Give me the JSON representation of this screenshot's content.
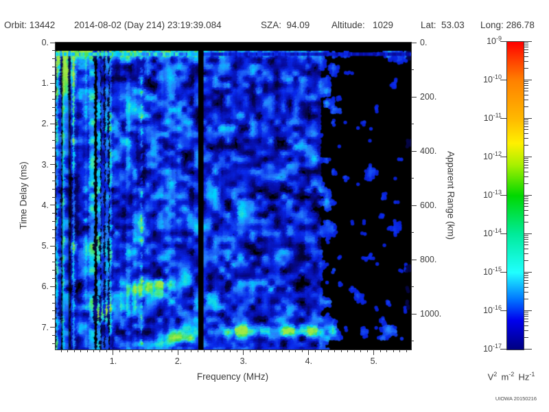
{
  "header": {
    "items": [
      {
        "label": "Orbit:",
        "value": "13442",
        "text": "Orbit: 13442"
      },
      {
        "label": "",
        "value": "2014-08-02 (Day 214) 23:19:39.084",
        "text": "2014-08-02 (Day 214) 23:19:39.084"
      },
      {
        "label": "SZA:",
        "value": "94.09",
        "text": "SZA:  94.09"
      },
      {
        "label": "Altitude:",
        "value": "1029",
        "text": "Altitude:   1029"
      },
      {
        "label": "Lat:",
        "value": "53.03",
        "text": "Lat:  53.03"
      },
      {
        "label": "Long:",
        "value": "286.78",
        "text": "Long: 286.78"
      }
    ]
  },
  "footer": {
    "credit": "UIOWA 20150216"
  },
  "chart_data": {
    "type": "heatmap",
    "subtype": "radar-ionogram-spectrogram",
    "x_axis": {
      "label": "Frequency (MHz)",
      "range": [
        0.105,
        5.56
      ],
      "major_ticks": [
        1,
        2,
        3,
        4,
        5
      ],
      "tick_labels": [
        "1.",
        "2.",
        "3.",
        "4.",
        "5."
      ],
      "minor_step": 0.1
    },
    "y_axis": {
      "label": "Time Delay (ms)",
      "range": [
        0,
        7.53
      ],
      "inverted": true,
      "major_ticks": [
        0,
        1,
        2,
        3,
        4,
        5,
        6,
        7
      ],
      "tick_labels": [
        "0.",
        "1.",
        "2.",
        "3.",
        "4.",
        "5.",
        "6.",
        "7."
      ],
      "minor_step": 0.2
    },
    "y2_axis": {
      "label": "Apparent Range (km)",
      "km_per_ms": 149.9,
      "major_ticks": [
        0,
        200,
        400,
        600,
        800,
        1000
      ],
      "tick_labels": [
        "0.",
        "200.",
        "400.",
        "600.",
        "800.",
        "1000."
      ],
      "minor_step": 100
    },
    "colorbar": {
      "unit": "V^2 m^-2 Hz^-1",
      "scale": "log",
      "max": "1e-9",
      "min": "1e-17",
      "tick_exponents": [
        -9,
        -10,
        -11,
        -12,
        -13,
        -14,
        -15,
        -16,
        -17
      ],
      "gradient_stops": [
        [
          0.0,
          "#ff0000"
        ],
        [
          0.06,
          "#ff4000"
        ],
        [
          0.125,
          "#ff8000"
        ],
        [
          0.25,
          "#ffb800"
        ],
        [
          0.33,
          "#fff000"
        ],
        [
          0.4,
          "#a8f000"
        ],
        [
          0.5,
          "#00d800"
        ],
        [
          0.625,
          "#00eb9a"
        ],
        [
          0.75,
          "#20ffff"
        ],
        [
          0.84,
          "#0070ff"
        ],
        [
          0.905,
          "#0000ee"
        ],
        [
          1.0,
          "#000080"
        ]
      ]
    },
    "colormap_stops": [
      [
        0.0,
        "#000000"
      ],
      [
        0.1,
        "#05053c"
      ],
      [
        0.22,
        "#080ca0"
      ],
      [
        0.38,
        "#0a28eb"
      ],
      [
        0.55,
        "#2882ff"
      ],
      [
        0.7,
        "#00d2ff"
      ],
      [
        0.82,
        "#46ebb4"
      ],
      [
        0.92,
        "#46e15a"
      ],
      [
        1.0,
        "#a0eb46"
      ]
    ],
    "features": {
      "top_black_band_ms": [
        0,
        0.185
      ],
      "transmit_band": {
        "t_center": 0.26,
        "t_sigma": 0.05
      },
      "black_column_mhz": [
        2.295,
        2.375
      ],
      "dark_columns_mhz": [
        [
          0.195,
          0.215,
          0.5
        ],
        [
          0.3,
          0.335,
          0.55
        ]
      ],
      "dashed_bright_column_mhz": 1.42,
      "stripe_region_max_mhz": 1.0,
      "high_freq_dark_onset_mhz": 4.15,
      "low_freq_echo": {
        "f_max": 0.95,
        "t_max": 1.5,
        "amp": 0.55
      },
      "echo_blobs": [
        {
          "f": 1.62,
          "t": 5.95,
          "fs": 0.28,
          "ts": 0.1,
          "amp": 0.55
        },
        {
          "f": 1.42,
          "t": 6.15,
          "fs": 0.22,
          "ts": 0.12,
          "amp": 0.45
        },
        {
          "f": 1.15,
          "t": 6.45,
          "fs": 0.22,
          "ts": 0.15,
          "amp": 0.3
        },
        {
          "f": 0.85,
          "t": 6.55,
          "fs": 0.2,
          "ts": 0.15,
          "amp": 0.22
        }
      ],
      "surface_trace_segments": [
        {
          "t": 7.1,
          "t_sigma": 0.1,
          "f_start": 2.55,
          "f_end": 4.55,
          "amp": 0.62
        },
        {
          "t": 7.1,
          "t_sigma": 0.09,
          "f_start": 4.55,
          "f_end": 5.5,
          "amp": 0.33
        },
        {
          "t": 7.27,
          "t_sigma": 0.1,
          "f_start": 1.72,
          "f_end": 2.3,
          "amp": 0.45
        },
        {
          "t": 7.05,
          "t_sigma": 0.08,
          "f_start": 2.05,
          "f_end": 2.3,
          "amp": 0.22
        }
      ]
    }
  }
}
